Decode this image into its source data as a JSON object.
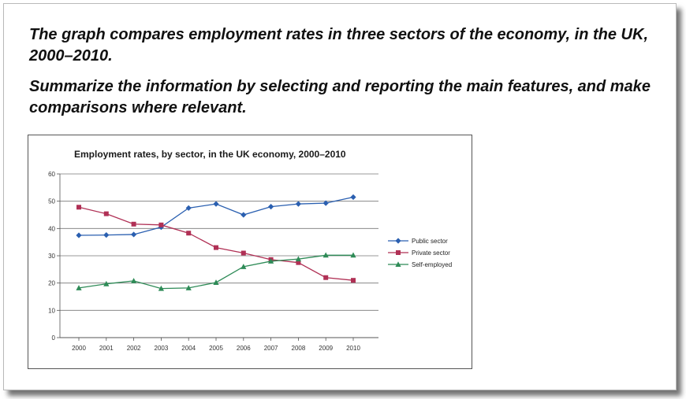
{
  "prompt": {
    "line1": "The graph compares employment rates in three sectors of the economy, in the UK, 2000–2010.",
    "line2": "Summarize the information by selecting and reporting the main features, and make comparisons where relevant."
  },
  "chart_data": {
    "type": "line",
    "title": "Employment rates, by sector, in the UK economy, 2000–2010",
    "xlabel": "",
    "ylabel": "",
    "x": [
      "2000",
      "2001",
      "2002",
      "2003",
      "2004",
      "2005",
      "2006",
      "2007",
      "2008",
      "2009",
      "2010"
    ],
    "ylim": [
      0,
      60
    ],
    "yticks": [
      0,
      10,
      20,
      30,
      40,
      50,
      60
    ],
    "grid": true,
    "legend_position": "right",
    "series": [
      {
        "name": "Public sector",
        "color": "#2a5fb0",
        "marker": "diamond",
        "values": [
          37.5,
          37.6,
          37.8,
          40.5,
          47.5,
          49,
          45,
          48,
          49,
          49.3,
          51.5
        ]
      },
      {
        "name": "Private sector",
        "color": "#b03055",
        "marker": "square",
        "values": [
          47.8,
          45.4,
          41.6,
          41.3,
          38.3,
          33,
          31,
          28.6,
          27.5,
          22,
          21
        ]
      },
      {
        "name": "Self-employed",
        "color": "#2e8b57",
        "marker": "triangle",
        "values": [
          18.2,
          19.7,
          20.8,
          18,
          18.2,
          20.2,
          26,
          28,
          28.8,
          30.2,
          30.2
        ]
      }
    ]
  }
}
